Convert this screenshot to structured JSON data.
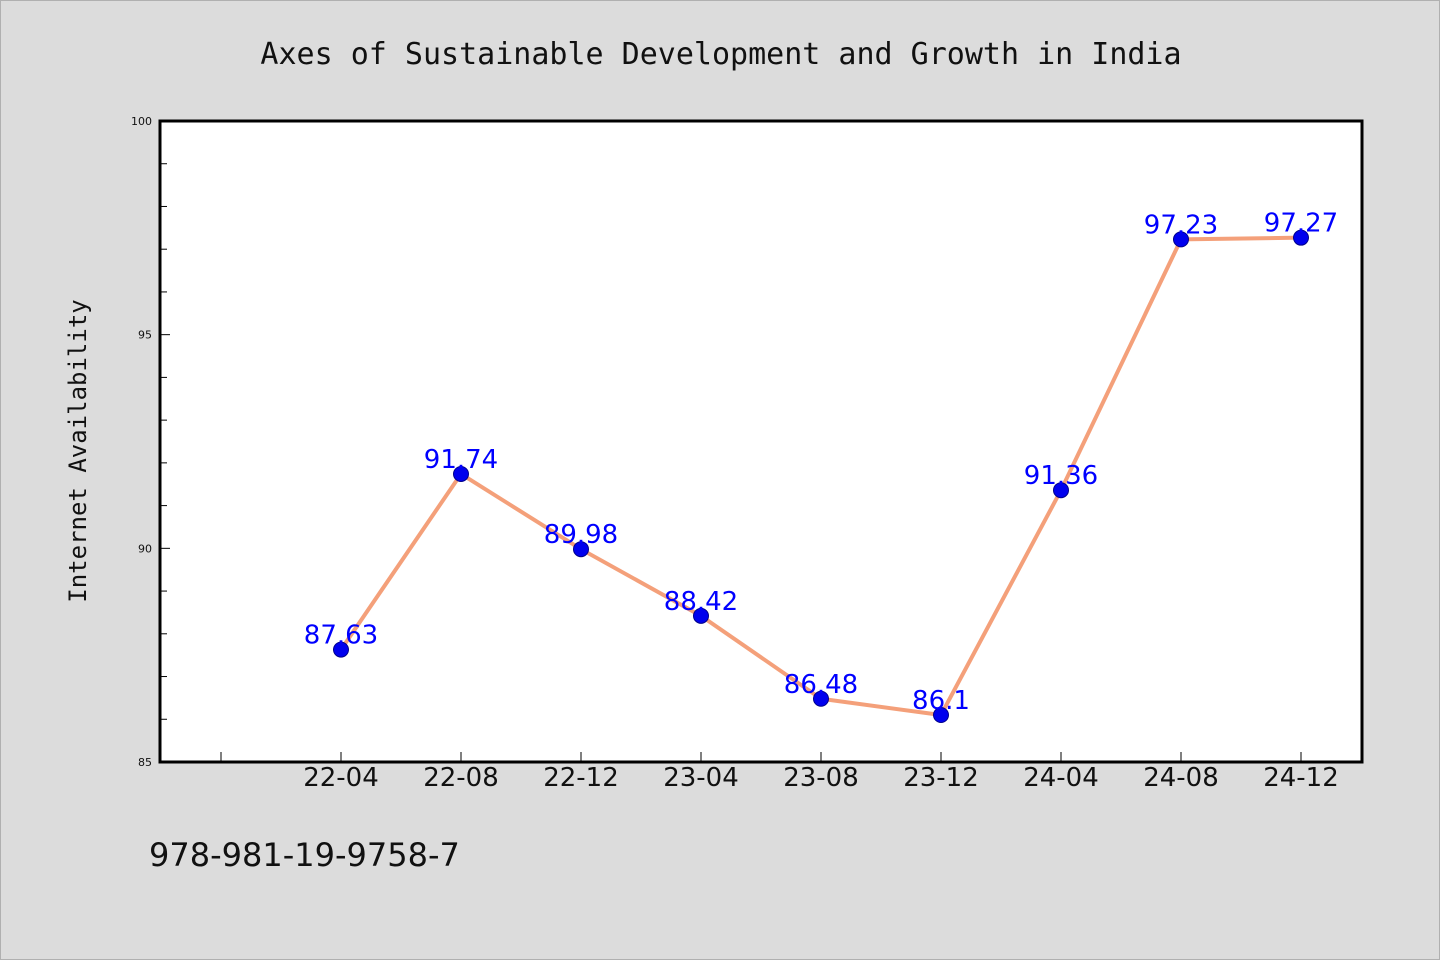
{
  "chart_data": {
    "type": "line",
    "title": "Axes of Sustainable Development and Growth in India",
    "xlabel": "",
    "ylabel": "Internet Availability",
    "categories": [
      "22-04",
      "22-08",
      "22-12",
      "23-04",
      "23-08",
      "23-12",
      "24-04",
      "24-08",
      "24-12"
    ],
    "series": [
      {
        "values": [
          87.63,
          91.74,
          89.98,
          88.42,
          86.48,
          86.1,
          91.36,
          97.23,
          97.27
        ],
        "line_color": "#f4a07a",
        "marker_color": "#0000ee"
      }
    ],
    "data_labels": [
      "87.63",
      "91.74",
      "89.98",
      "88.42",
      "86.48",
      "86.1",
      "91.36",
      "97.23",
      "97.27"
    ],
    "ylim": [
      85,
      100
    ],
    "yticks": [
      "85",
      "90",
      "95",
      "100"
    ],
    "grid": false,
    "legend": "none",
    "label_color": "#0000ff"
  },
  "footer_text": "978-981-19-9758-7"
}
